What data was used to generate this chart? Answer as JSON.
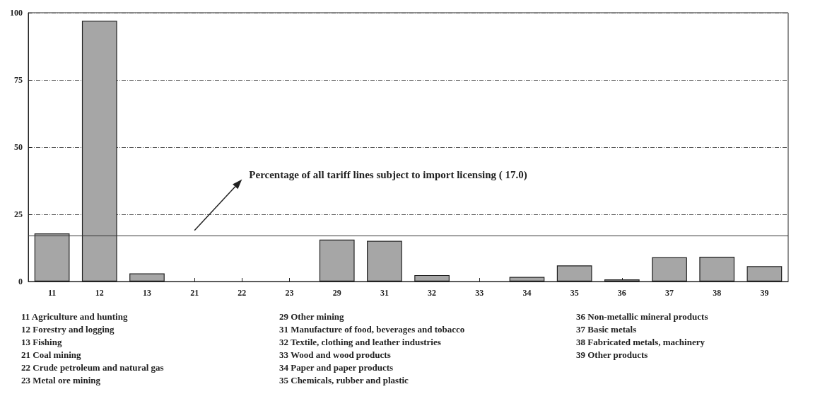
{
  "chart_data": {
    "type": "bar",
    "categories": [
      "11",
      "12",
      "13",
      "21",
      "22",
      "23",
      "29",
      "31",
      "32",
      "33",
      "34",
      "35",
      "36",
      "37",
      "38",
      "39"
    ],
    "values": [
      17.9,
      97,
      3,
      0,
      0,
      0,
      15.6,
      15.1,
      2.4,
      0,
      1.7,
      6,
      0.8,
      9,
      9.2,
      5.7
    ],
    "color": "#a6a6a6",
    "ylim": [
      0,
      100
    ],
    "yticks": [
      0,
      25,
      50,
      75,
      100
    ],
    "grid": "y",
    "ref_lines": [
      {
        "axis": "y",
        "value": 17,
        "label": "Percentage of all tariff lines subject to import licensing ( 17.0)",
        "color": "#333333"
      }
    ],
    "annotations": [
      "11  Agriculture and hunting",
      "12  Forestry and logging",
      "13  Fishing",
      "21 Coal mining",
      "22 Crude petroleum and natural gas",
      "23 Metal ore mining",
      "29 Other mining",
      "31 Manufacture of food, beverages and tobacco",
      "32 Textile, clothing and leather industries",
      "33 Wood and wood products",
      "34  Paper and paper products",
      "35  Chemicals, rubber and plastic",
      "36  Non-metallic mineral products",
      "37  Basic metals",
      "38  Fabricated metals, machinery",
      "39  Other products"
    ]
  }
}
